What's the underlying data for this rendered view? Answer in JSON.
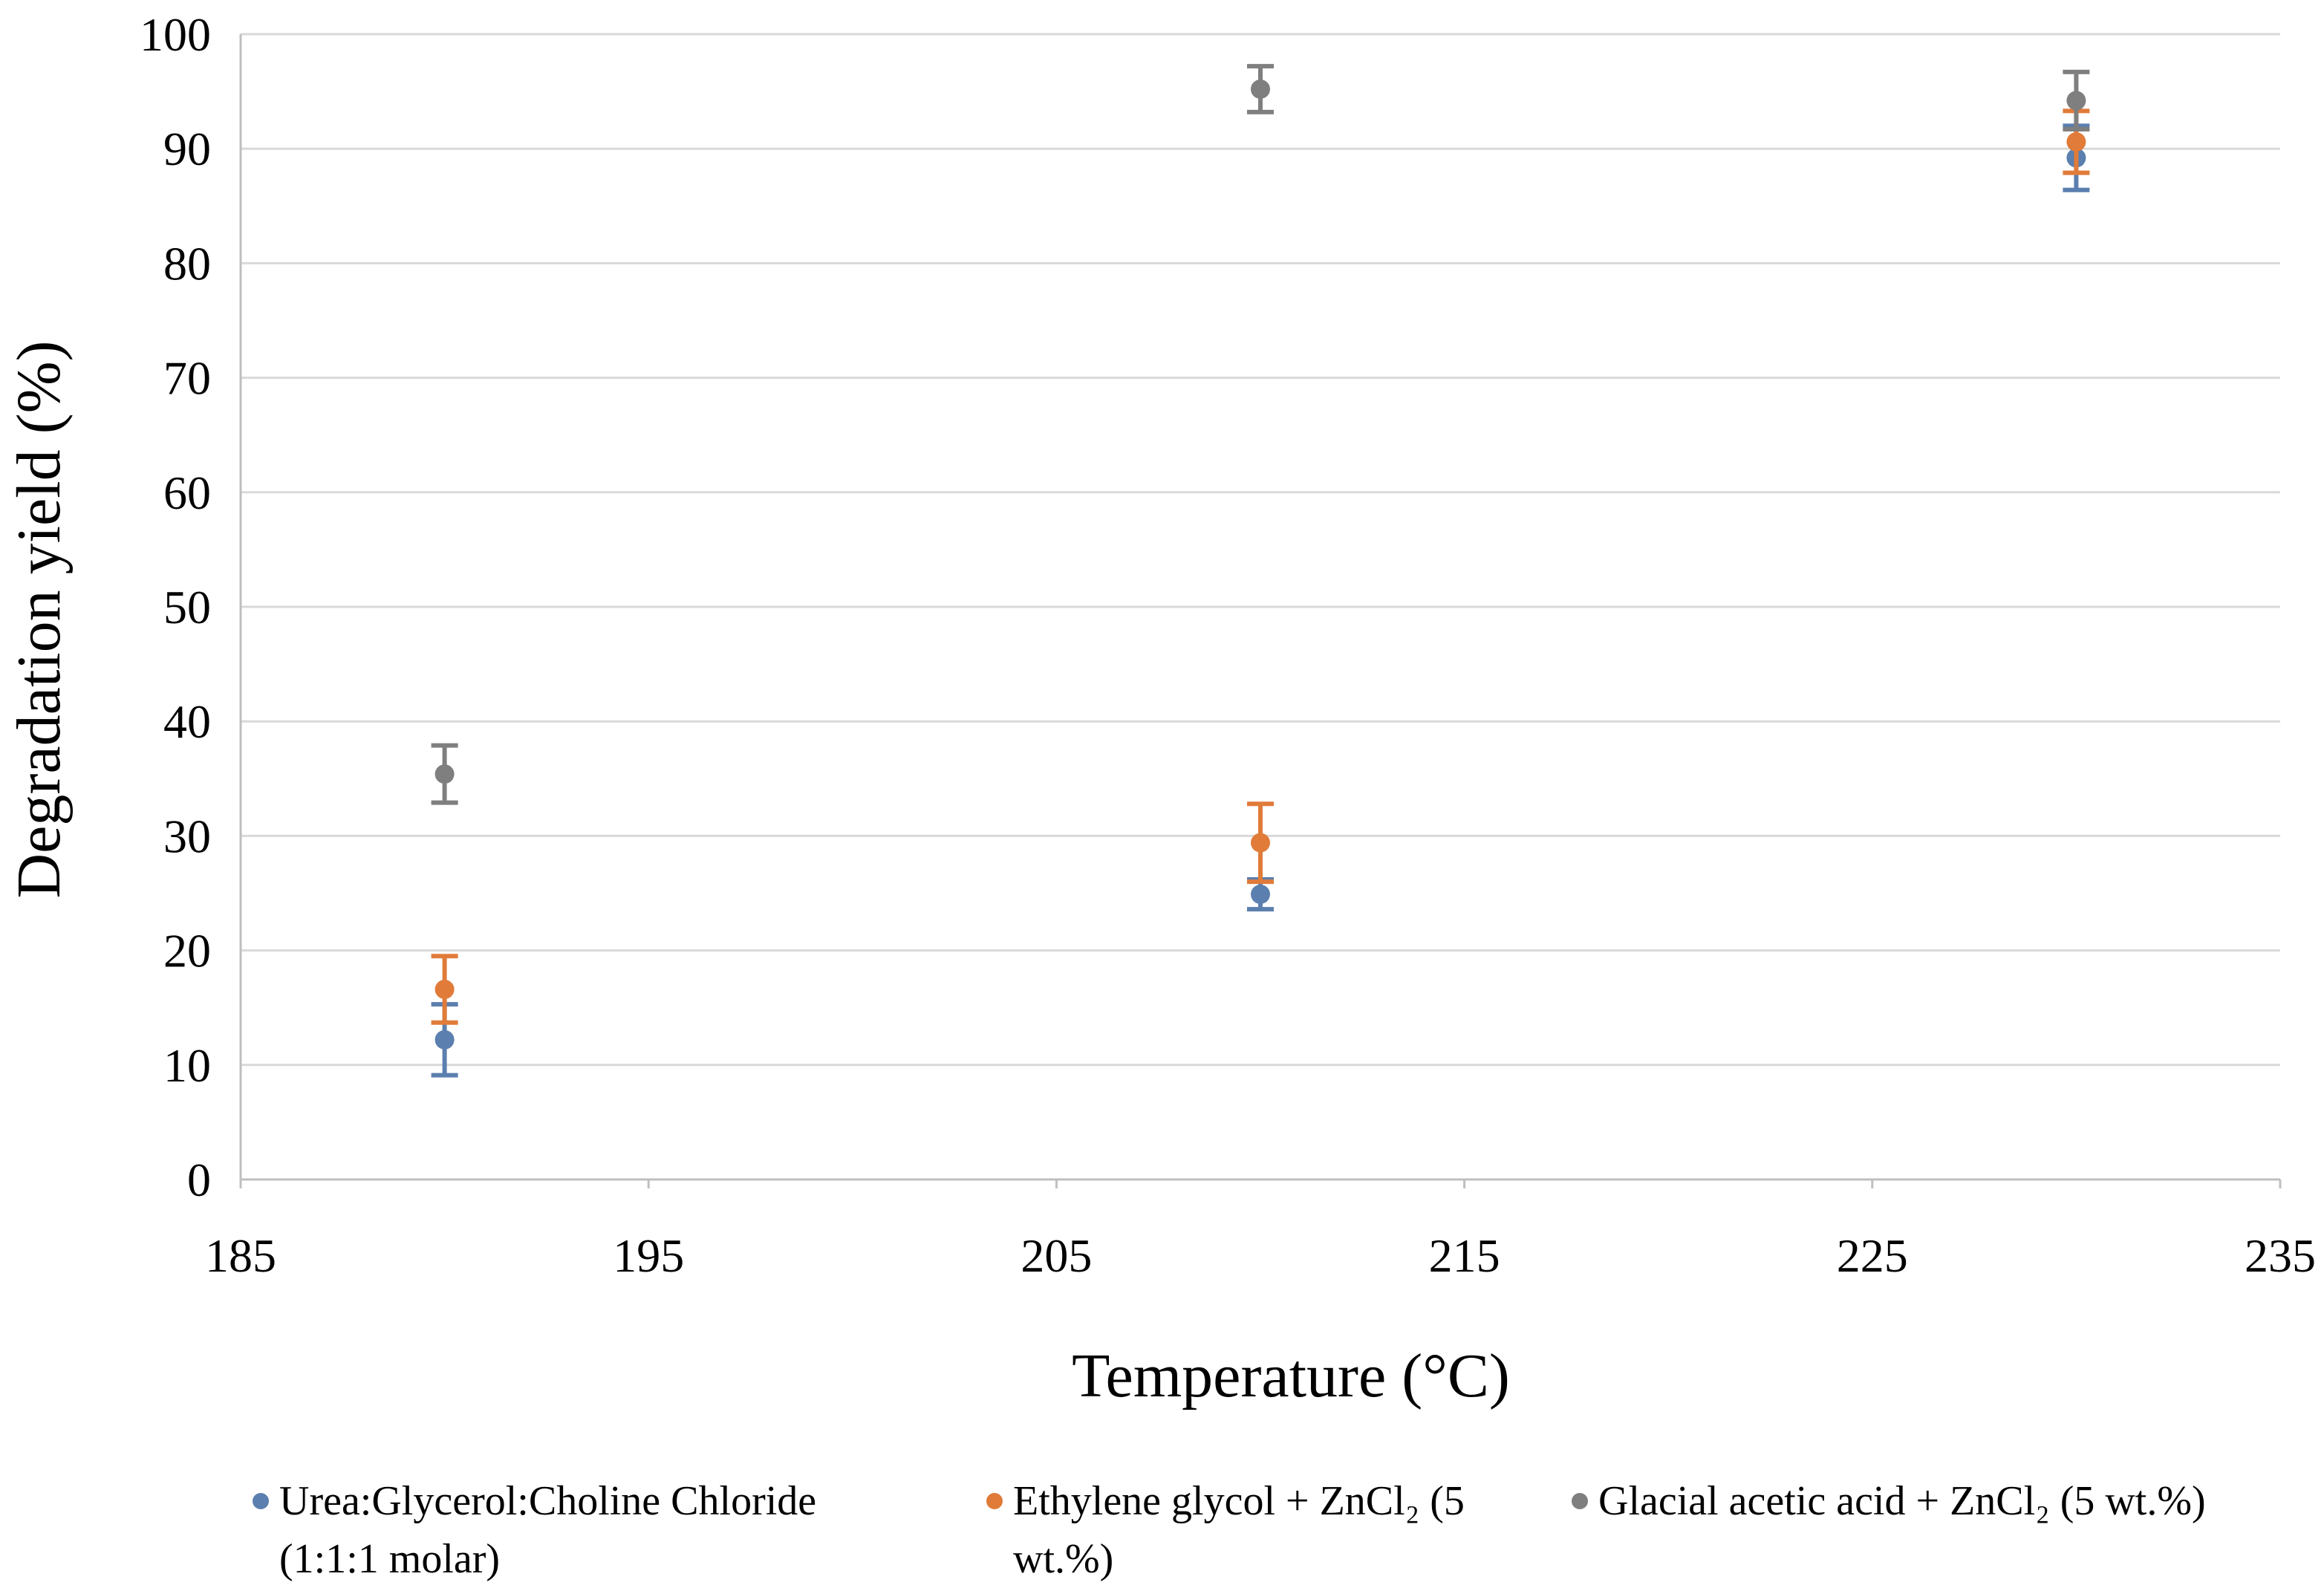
{
  "chart_data": {
    "type": "scatter",
    "xlabel": "Temperature (°C)",
    "ylabel": "Degradation yield (%)",
    "xlim": [
      185,
      235
    ],
    "xticks": [
      185,
      195,
      205,
      215,
      225,
      235
    ],
    "ylim": [
      0,
      100
    ],
    "yticks": [
      0,
      10,
      20,
      30,
      40,
      50,
      60,
      70,
      80,
      90,
      100
    ],
    "grid": true,
    "legend": "bottom",
    "series": [
      {
        "name": "Urea:Glycerol:Choline Chloride (1:1:1 molar)",
        "color": "#5b7fae",
        "x": [
          190,
          210,
          230
        ],
        "values": [
          12.2,
          24.9,
          89.2
        ],
        "errors": [
          3.1,
          1.3,
          2.8
        ]
      },
      {
        "name": "Ethylene glycol + ZnCl₂ (5 wt.%)",
        "color": "#e07b39",
        "x": [
          190,
          210,
          230
        ],
        "values": [
          16.6,
          29.4,
          90.6
        ],
        "errors": [
          2.9,
          3.4,
          2.7
        ]
      },
      {
        "name": "Glacial acetic acid + ZnCl₂ (5 wt.%)",
        "color": "#7f7f7f",
        "x": [
          190,
          210,
          230
        ],
        "values": [
          35.4,
          95.2,
          94.2
        ],
        "errors": [
          2.5,
          2.0,
          2.5
        ]
      }
    ]
  }
}
